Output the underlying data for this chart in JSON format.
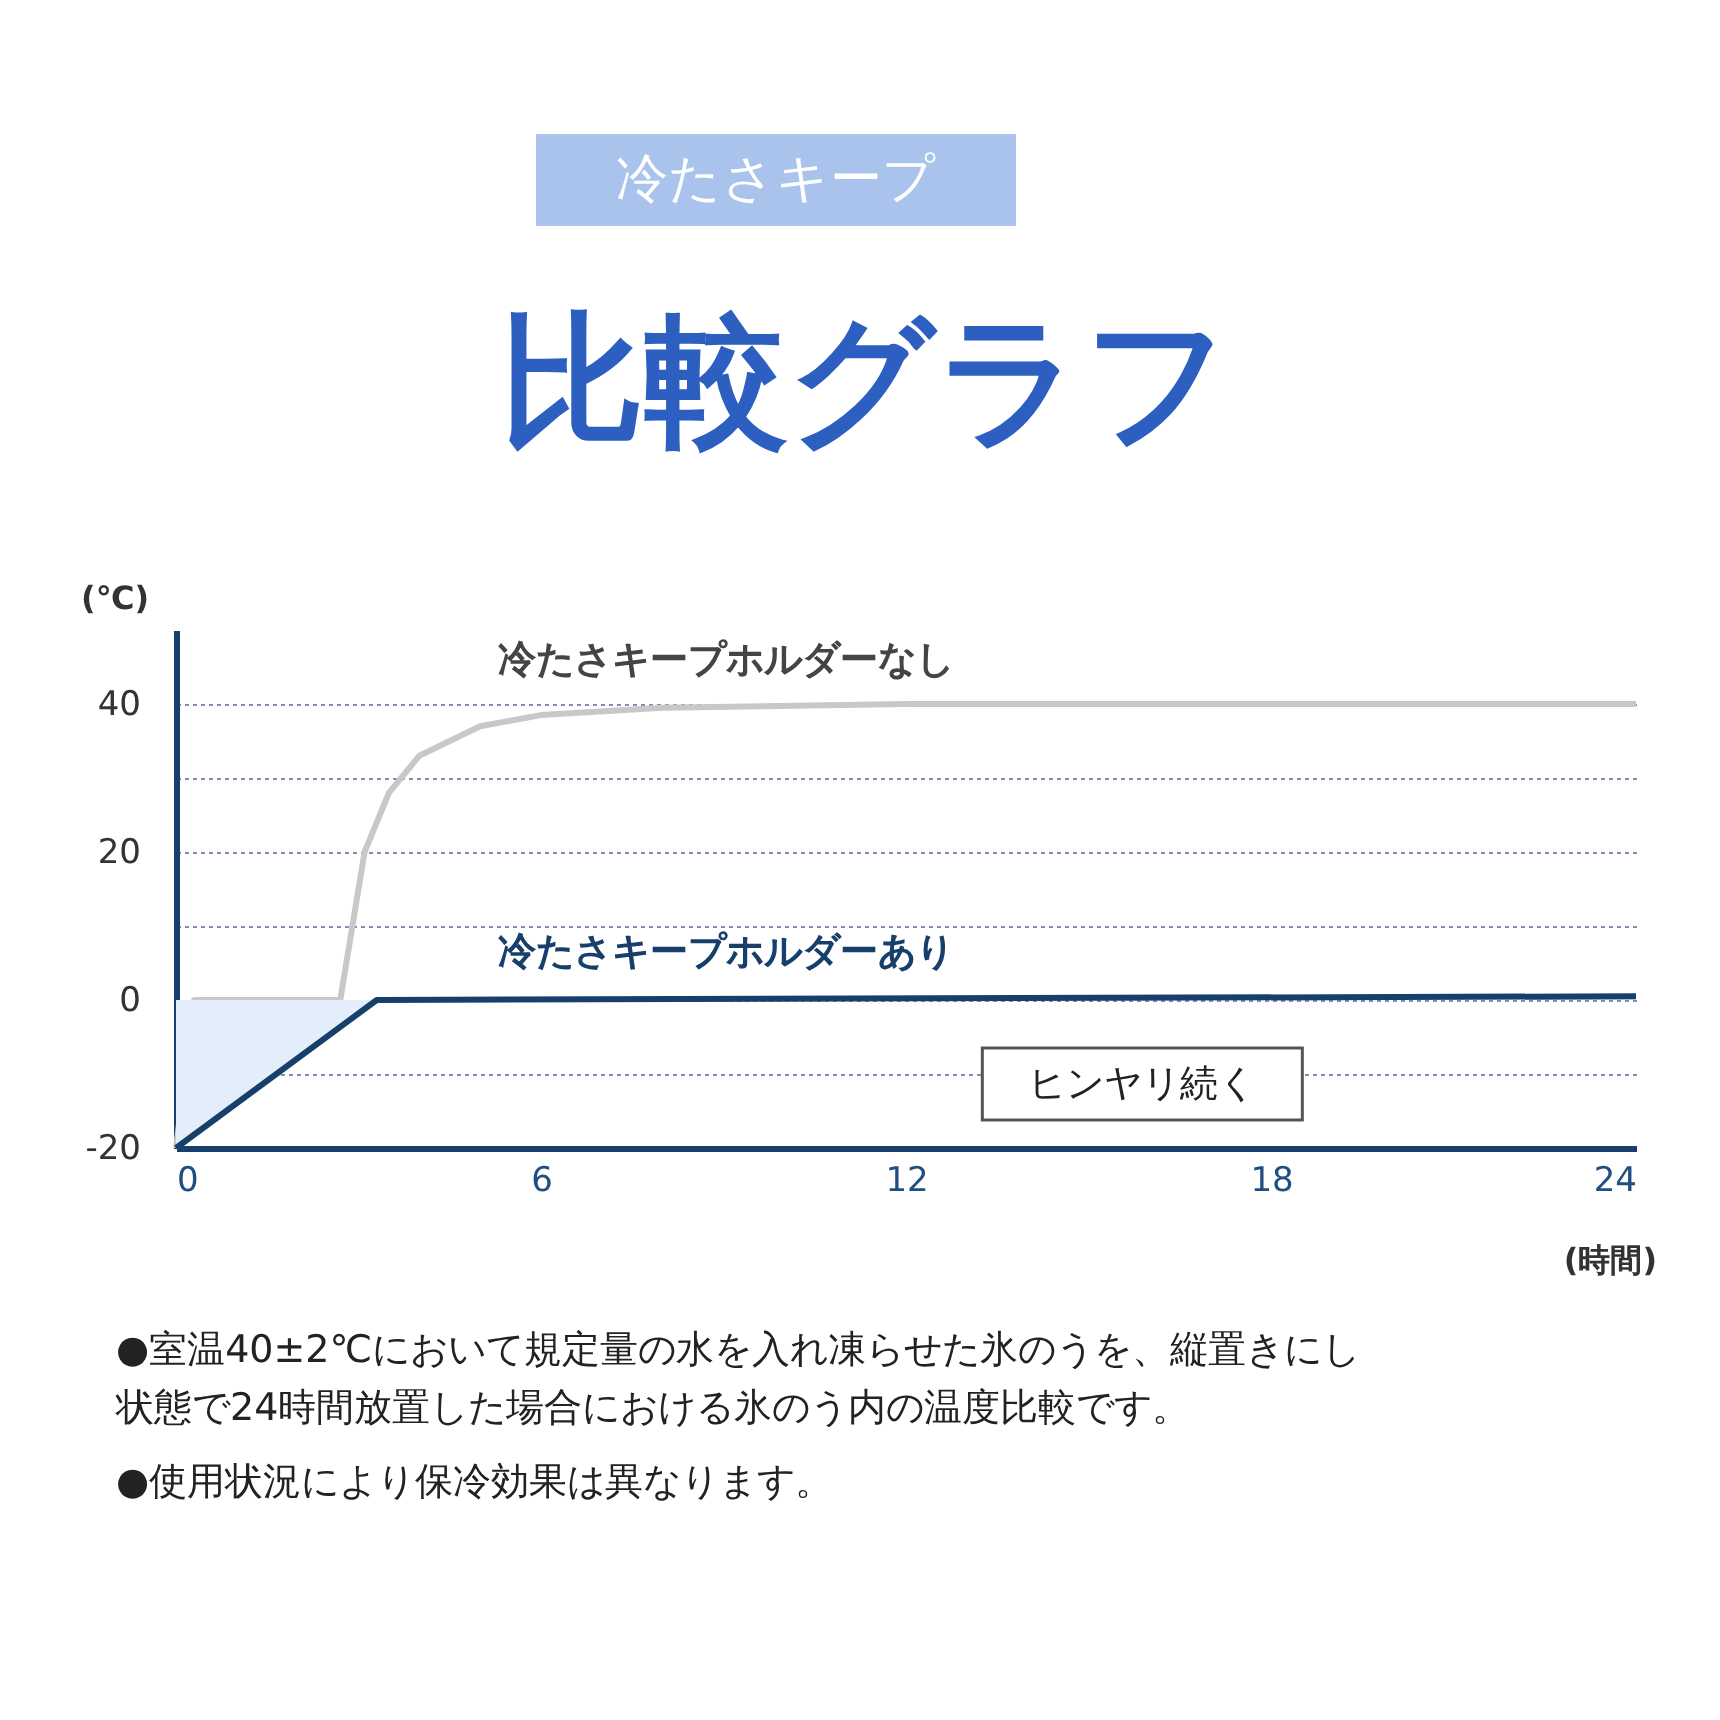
{
  "chart_data": {
    "type": "line",
    "title": "比較グラフ",
    "subtitle": "冷たさキープ",
    "xlabel": "(時間)",
    "ylabel": "(℃)",
    "xlim": [
      0,
      24
    ],
    "xticks": [
      0,
      6,
      12,
      18,
      24
    ],
    "ylim": [
      -20,
      50
    ],
    "yticks": [
      -20,
      {
        "value": -10,
        "label": null
      },
      0,
      {
        "value": 10,
        "label": null
      },
      20,
      {
        "value": 30,
        "label": null
      },
      40
    ],
    "grid": "y",
    "line_style": "solid",
    "series": [
      {
        "name": "冷たさキープホルダーなし",
        "color": "#c8c8c8",
        "x": [
          0,
          0.3,
          2.7,
          2.9,
          3.1,
          3.5,
          4,
          5,
          6,
          8,
          12,
          24
        ],
        "values": [
          -20,
          0,
          0,
          10,
          20,
          28,
          33,
          37,
          38.5,
          39.5,
          40,
          40
        ]
      },
      {
        "name": "冷たさキープホルダーあり",
        "color": "#173f6b",
        "type": "area",
        "x": [
          0,
          3.3,
          24
        ],
        "values": [
          -20,
          0,
          0.5
        ]
      }
    ],
    "annotations": [
      {
        "text": "ヒンヤリ続く",
        "x": 17.2,
        "y": 0
      },
      "●室温40±2℃において規定量の水を入れ凍らせた氷のうを、縦置きにし状態で24時間放置した場合における氷のう内の温度比較です。",
      "●使用状況により保冷効果は異なります。"
    ]
  }
}
